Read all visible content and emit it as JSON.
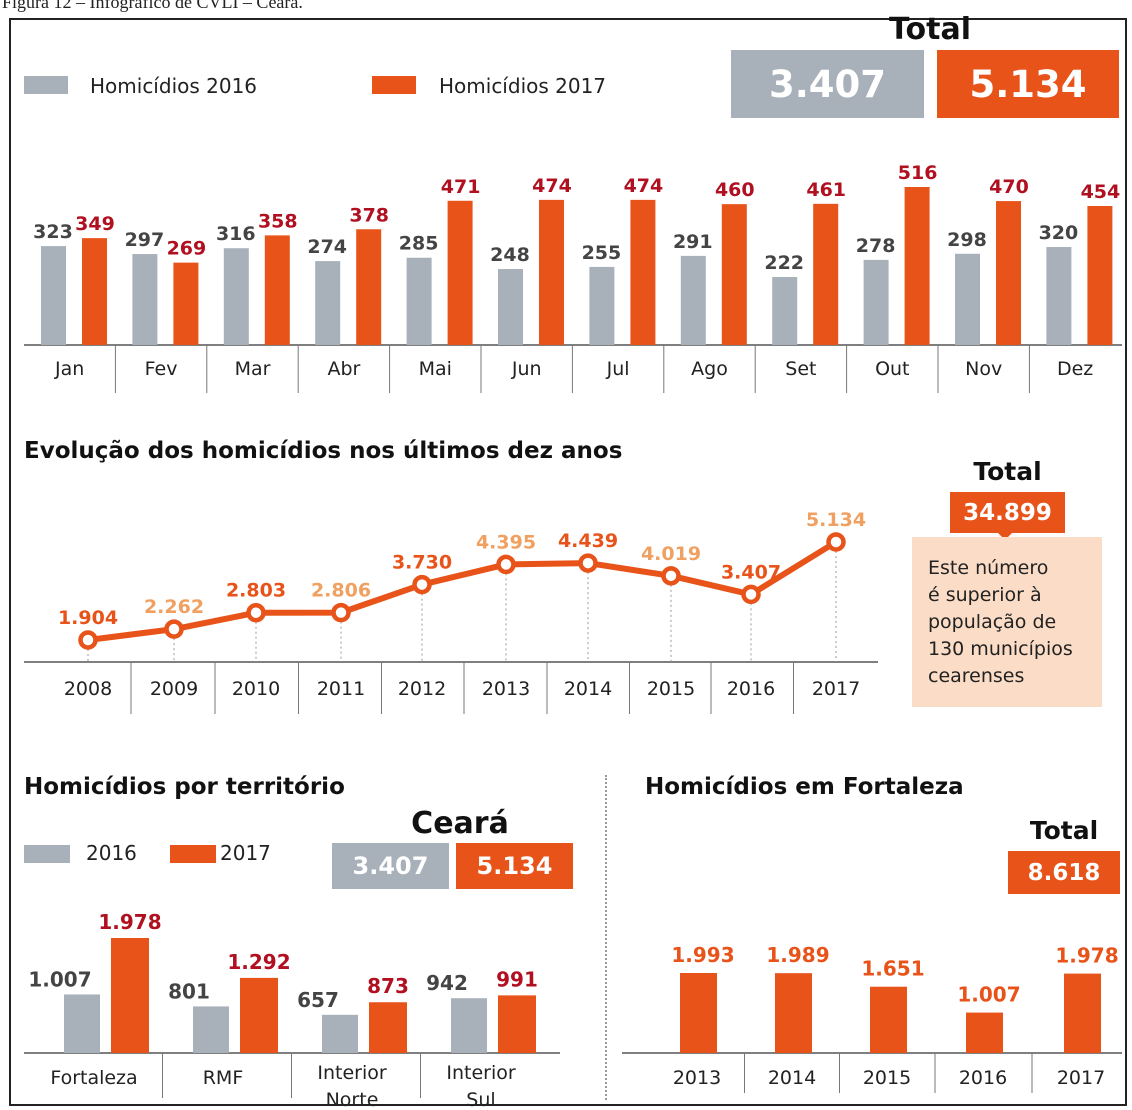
{
  "caption": "Figura 12 – Infográfico de CVLI – Ceará.",
  "colors": {
    "y2016": "#a8b0ba",
    "y2017": "#e8531a",
    "label2016": "#444444",
    "label2017": "#b01020",
    "lineLabelLight": "#f0a060",
    "lineLabelDark": "#e8531a"
  },
  "top": {
    "legend_2016": "Homicídios 2016",
    "legend_2017": "Homicídios 2017",
    "total_label": "Total",
    "total_2016": "3.407",
    "total_2017": "5.134"
  },
  "line_section": {
    "title": "Evolução dos homicídios nos últimos dez anos",
    "total_label": "Total",
    "total_value": "34.899",
    "note_lines": [
      "Este número",
      "é superior à",
      "população de",
      "130 municípios",
      "cearenses"
    ]
  },
  "territory": {
    "title": "Homicídios por território",
    "legend_2016": "2016",
    "legend_2017": "2017",
    "state_label": "Ceará",
    "total_2016": "3.407",
    "total_2017": "5.134"
  },
  "fortaleza": {
    "title": "Homicídios em Fortaleza",
    "total_label": "Total",
    "total_value": "8.618"
  },
  "chart_data": [
    {
      "type": "bar",
      "categories": [
        "Jan",
        "Fev",
        "Mar",
        "Abr",
        "Mai",
        "Jun",
        "Jul",
        "Ago",
        "Set",
        "Out",
        "Nov",
        "Dez"
      ],
      "series": [
        {
          "name": "Homicídios 2016",
          "values": [
            323,
            297,
            316,
            274,
            285,
            248,
            255,
            291,
            222,
            278,
            298,
            320
          ]
        },
        {
          "name": "Homicídios 2017",
          "values": [
            349,
            269,
            358,
            378,
            471,
            474,
            474,
            460,
            461,
            516,
            470,
            454
          ]
        }
      ],
      "value_labels": {
        "2016": [
          "323",
          "297",
          "316",
          "274",
          "285",
          "248",
          "255",
          "291",
          "222",
          "278",
          "298",
          "320"
        ],
        "2017": [
          "349",
          "269",
          "358",
          "378",
          "471",
          "474",
          "474",
          "460",
          "461",
          "516",
          "470",
          "454"
        ]
      },
      "ylim": [
        0,
        520
      ]
    },
    {
      "type": "line",
      "title": "Evolução dos homicídios nos últimos dez anos",
      "x": [
        "2008",
        "2009",
        "2010",
        "2011",
        "2012",
        "2013",
        "2014",
        "2015",
        "2016",
        "2017"
      ],
      "values": [
        1904,
        2262,
        2803,
        2806,
        3730,
        4395,
        4439,
        4019,
        3407,
        5134
      ],
      "value_labels": [
        "1.904",
        "2.262",
        "2.803",
        "2.806",
        "3.730",
        "4.395",
        "4.439",
        "4.019",
        "3.407",
        "5.134"
      ],
      "label_shade": [
        "dark",
        "light",
        "dark",
        "light",
        "dark",
        "light",
        "dark",
        "light",
        "dark",
        "light"
      ],
      "ylim": [
        1500,
        5500
      ]
    },
    {
      "type": "bar",
      "title": "Homicídios por território",
      "categories": [
        "Fortaleza",
        "RMF",
        "Interior Norte",
        "Interior Sul"
      ],
      "category_lines": [
        [
          "Fortaleza"
        ],
        [
          "RMF"
        ],
        [
          "Interior",
          "Norte"
        ],
        [
          "Interior",
          "Sul"
        ]
      ],
      "series": [
        {
          "name": "2016",
          "values": [
            1007,
            801,
            657,
            942
          ]
        },
        {
          "name": "2017",
          "values": [
            1978,
            1292,
            873,
            991
          ]
        }
      ],
      "value_labels": {
        "2016": [
          "1.007",
          "801",
          "657",
          "942"
        ],
        "2017": [
          "1.978",
          "1.292",
          "873",
          "991"
        ]
      },
      "ylim": [
        0,
        2000
      ]
    },
    {
      "type": "bar",
      "title": "Homicídios em Fortaleza",
      "categories": [
        "2013",
        "2014",
        "2015",
        "2016",
        "2017"
      ],
      "values": [
        1993,
        1989,
        1651,
        1007,
        1978
      ],
      "value_labels": [
        "1.993",
        "1.989",
        "1.651",
        "1.007",
        "1.978"
      ],
      "ylim": [
        0,
        2000
      ]
    }
  ]
}
